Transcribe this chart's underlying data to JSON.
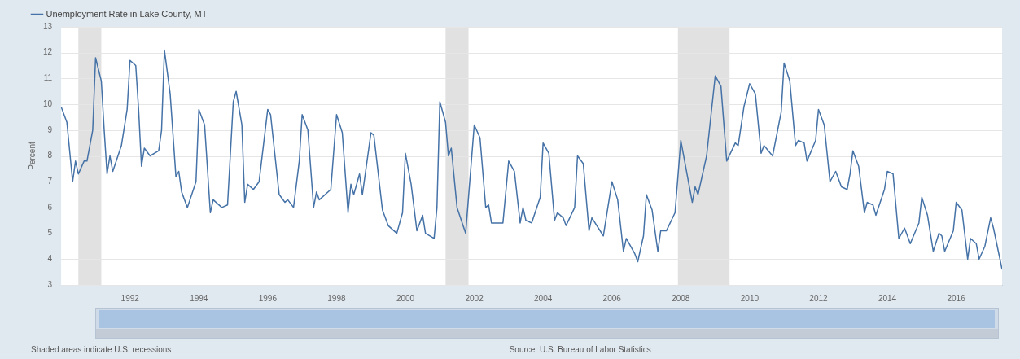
{
  "chart_data": {
    "type": "line",
    "ylabel": "Percent",
    "legend": "top left",
    "grid": "y",
    "marker": "none",
    "line_style": "solid",
    "xlim": [
      "1990-01",
      "2017-05"
    ],
    "xticks": [
      "1992",
      "1994",
      "1996",
      "1998",
      "2000",
      "2002",
      "2004",
      "2006",
      "2008",
      "2010",
      "2012",
      "2014",
      "2016"
    ],
    "ylim": [
      3,
      13
    ],
    "yticks": [
      3,
      4,
      5,
      6,
      7,
      8,
      9,
      10,
      11,
      12,
      13
    ],
    "bands": [
      {
        "axis": "x",
        "from": "1990-07",
        "to": "1991-03",
        "color": "#e1e1e1"
      },
      {
        "axis": "x",
        "from": "2001-03",
        "to": "2001-11",
        "color": "#e1e1e1"
      },
      {
        "axis": "x",
        "from": "2007-12",
        "to": "2009-06",
        "color": "#e1e1e1"
      }
    ],
    "annotations": [
      "Shaded areas indicate U.S. recessions",
      "Source: U.S. Bureau of Labor Statistics"
    ],
    "series": [
      {
        "name": "Unemployment Rate in Lake County, MT",
        "color": "#4572a7",
        "x": [
          "1990-01",
          "1990-03",
          "1990-05",
          "1990-06",
          "1990-07",
          "1990-09",
          "1990-10",
          "1990-12",
          "1991-01",
          "1991-03",
          "1991-04",
          "1991-05",
          "1991-06",
          "1991-07",
          "1991-10",
          "1991-12",
          "1992-01",
          "1992-03",
          "1992-04",
          "1992-05",
          "1992-06",
          "1992-08",
          "1992-11",
          "1992-12",
          "1993-01",
          "1993-03",
          "1993-05",
          "1993-06",
          "1993-07",
          "1993-09",
          "1993-12",
          "1994-01",
          "1994-03",
          "1994-05",
          "1994-06",
          "1994-09",
          "1994-11",
          "1995-01",
          "1995-02",
          "1995-04",
          "1995-05",
          "1995-06",
          "1995-08",
          "1995-10",
          "1996-01",
          "1996-02",
          "1996-05",
          "1996-07",
          "1996-08",
          "1996-10",
          "1996-12",
          "1997-01",
          "1997-03",
          "1997-05",
          "1997-06",
          "1997-07",
          "1997-11",
          "1998-01",
          "1998-03",
          "1998-05",
          "1998-06",
          "1998-07",
          "1998-09",
          "1998-10",
          "1999-01",
          "1999-02",
          "1999-05",
          "1999-07",
          "1999-10",
          "1999-12",
          "2000-01",
          "2000-03",
          "2000-05",
          "2000-07",
          "2000-08",
          "2000-11",
          "2000-12",
          "2001-01",
          "2001-03",
          "2001-04",
          "2001-05",
          "2001-07",
          "2001-10",
          "2002-01",
          "2002-03",
          "2002-05",
          "2002-06",
          "2002-07",
          "2002-11",
          "2003-01",
          "2003-03",
          "2003-05",
          "2003-06",
          "2003-07",
          "2003-09",
          "2003-12",
          "2004-01",
          "2004-03",
          "2004-05",
          "2004-06",
          "2004-08",
          "2004-09",
          "2004-12",
          "2005-01",
          "2005-03",
          "2005-05",
          "2005-06",
          "2005-10",
          "2006-01",
          "2006-03",
          "2006-05",
          "2006-06",
          "2006-09",
          "2006-10",
          "2006-12",
          "2007-01",
          "2007-03",
          "2007-05",
          "2007-06",
          "2007-08",
          "2007-11",
          "2008-01",
          "2008-05",
          "2008-06",
          "2008-07",
          "2008-10",
          "2009-01",
          "2009-03",
          "2009-05",
          "2009-08",
          "2009-09",
          "2009-11",
          "2010-01",
          "2010-03",
          "2010-05",
          "2010-06",
          "2010-09",
          "2010-12",
          "2011-01",
          "2011-03",
          "2011-05",
          "2011-06",
          "2011-08",
          "2011-09",
          "2011-12",
          "2012-01",
          "2012-03",
          "2012-05",
          "2012-07",
          "2012-09",
          "2012-11",
          "2012-12",
          "2013-01",
          "2013-03",
          "2013-05",
          "2013-06",
          "2013-08",
          "2013-09",
          "2013-12",
          "2014-01",
          "2014-03",
          "2014-05",
          "2014-07",
          "2014-09",
          "2014-12",
          "2015-01",
          "2015-03",
          "2015-05",
          "2015-07",
          "2015-08",
          "2015-09",
          "2015-12",
          "2016-01",
          "2016-03",
          "2016-05",
          "2016-06",
          "2016-08",
          "2016-09",
          "2016-11",
          "2017-01",
          "2017-02",
          "2017-05"
        ],
        "values": [
          9.9,
          9.3,
          7.0,
          7.8,
          7.3,
          7.8,
          7.8,
          9.0,
          11.8,
          10.9,
          9.0,
          7.3,
          8.0,
          7.4,
          8.4,
          9.8,
          11.7,
          11.5,
          9.8,
          7.6,
          8.3,
          8.0,
          8.2,
          9.0,
          12.1,
          10.4,
          7.2,
          7.4,
          6.6,
          6.0,
          7.0,
          9.8,
          9.2,
          5.8,
          6.3,
          6.0,
          6.1,
          10.1,
          10.5,
          9.2,
          6.2,
          6.9,
          6.7,
          7.0,
          9.8,
          9.6,
          6.5,
          6.2,
          6.3,
          6.0,
          7.8,
          9.6,
          9.0,
          6.0,
          6.6,
          6.3,
          6.7,
          9.6,
          8.9,
          5.8,
          6.9,
          6.5,
          7.3,
          6.5,
          8.9,
          8.8,
          5.9,
          5.3,
          5.0,
          5.8,
          8.1,
          6.9,
          5.1,
          5.7,
          5.0,
          4.8,
          6.0,
          10.1,
          9.3,
          8.0,
          8.3,
          6.0,
          5.0,
          9.2,
          8.7,
          6.0,
          6.1,
          5.4,
          5.4,
          7.8,
          7.4,
          5.4,
          6.0,
          5.5,
          5.4,
          6.4,
          8.5,
          8.1,
          5.5,
          5.8,
          5.6,
          5.3,
          6.0,
          8.0,
          7.7,
          5.1,
          5.6,
          4.9,
          7.0,
          6.3,
          4.3,
          4.8,
          4.2,
          3.9,
          4.9,
          6.5,
          5.9,
          4.3,
          5.1,
          5.1,
          5.8,
          8.6,
          6.2,
          6.8,
          6.5,
          8.0,
          11.1,
          10.7,
          7.8,
          8.5,
          8.4,
          9.9,
          10.8,
          10.4,
          8.1,
          8.4,
          8.0,
          9.7,
          11.6,
          10.9,
          8.4,
          8.6,
          8.5,
          7.8,
          8.6,
          9.8,
          9.2,
          7.0,
          7.4,
          6.8,
          6.7,
          7.3,
          8.2,
          7.6,
          5.8,
          6.2,
          6.1,
          5.7,
          6.7,
          7.4,
          7.3,
          4.8,
          5.2,
          4.6,
          5.4,
          6.4,
          5.7,
          4.3,
          5.0,
          4.9,
          4.3,
          5.1,
          6.2,
          5.9,
          4.0,
          4.8,
          4.6,
          4.0,
          4.5,
          5.6,
          5.2,
          3.6
        ]
      }
    ]
  }
}
